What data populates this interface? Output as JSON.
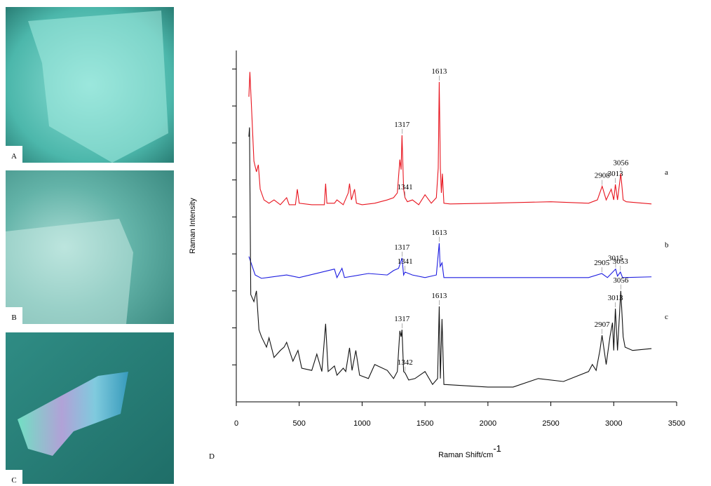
{
  "panels": [
    "A",
    "B",
    "C",
    "D"
  ],
  "chart_data": {
    "type": "line",
    "x_label": "Raman Shift/cm",
    "x_label_sup": "-1",
    "y_label": "Raman Intensity",
    "xlim": [
      0,
      3500
    ],
    "xticks": [
      0,
      500,
      1000,
      1500,
      2000,
      2500,
      3000,
      3500
    ],
    "ylim": [
      0,
      9.5
    ],
    "yticks": [
      1,
      2,
      3,
      4,
      5,
      6,
      7,
      8,
      9
    ],
    "ytick_labels": false,
    "series": [
      {
        "name": "a",
        "color": "#e8141e",
        "x": [
          100,
          108,
          120,
          140,
          160,
          175,
          190,
          220,
          260,
          300,
          350,
          400,
          420,
          470,
          485,
          500,
          600,
          700,
          710,
          720,
          780,
          800,
          850,
          890,
          900,
          915,
          940,
          955,
          1000,
          1100,
          1200,
          1250,
          1280,
          1300,
          1310,
          1317,
          1330,
          1341,
          1360,
          1400,
          1450,
          1500,
          1550,
          1590,
          1605,
          1613,
          1622,
          1630,
          1638,
          1650,
          1700,
          2000,
          2500,
          2800,
          2870,
          2908,
          2940,
          2980,
          3000,
          3013,
          3030,
          3056,
          3075,
          3100,
          3300
        ],
        "values": [
          8.25,
          8.92,
          8.03,
          6.51,
          6.22,
          6.41,
          5.75,
          5.46,
          5.37,
          5.46,
          5.33,
          5.52,
          5.33,
          5.33,
          5.75,
          5.37,
          5.33,
          5.33,
          5.9,
          5.37,
          5.37,
          5.46,
          5.33,
          5.65,
          5.9,
          5.46,
          5.75,
          5.37,
          5.33,
          5.37,
          5.46,
          5.52,
          5.65,
          6.55,
          6.28,
          7.21,
          5.75,
          5.52,
          5.41,
          5.46,
          5.33,
          5.6,
          5.37,
          5.52,
          6.32,
          8.65,
          6.32,
          5.65,
          6.17,
          5.37,
          5.35,
          5.37,
          5.41,
          5.37,
          5.46,
          5.83,
          5.46,
          5.75,
          5.46,
          5.88,
          5.46,
          6.17,
          5.46,
          5.41,
          5.35
        ],
        "peaks": [
          1317,
          1341,
          1613,
          2908,
          3013,
          3056
        ]
      },
      {
        "name": "b",
        "color": "#1c1ce0",
        "x": [
          100,
          150,
          200,
          400,
          500,
          780,
          800,
          840,
          860,
          1050,
          1200,
          1250,
          1290,
          1317,
          1330,
          1341,
          1400,
          1500,
          1590,
          1613,
          1620,
          1635,
          1650,
          2000,
          2800,
          2905,
          2950,
          3015,
          3030,
          3053,
          3070,
          3300
        ],
        "values": [
          3.93,
          3.43,
          3.34,
          3.43,
          3.36,
          3.59,
          3.36,
          3.61,
          3.36,
          3.47,
          3.43,
          3.55,
          3.61,
          3.89,
          3.43,
          3.51,
          3.43,
          3.36,
          3.43,
          4.29,
          3.66,
          3.76,
          3.36,
          3.36,
          3.36,
          3.47,
          3.36,
          3.59,
          3.4,
          3.51,
          3.36,
          3.38
        ],
        "peaks": [
          1317,
          1341,
          1613,
          2905,
          3015,
          3053
        ]
      },
      {
        "name": "c",
        "color": "#111111",
        "x": [
          100,
          105,
          115,
          140,
          160,
          180,
          200,
          240,
          260,
          300,
          350,
          380,
          400,
          450,
          490,
          520,
          600,
          640,
          680,
          710,
          730,
          780,
          800,
          850,
          870,
          900,
          920,
          950,
          980,
          1050,
          1100,
          1200,
          1250,
          1280,
          1300,
          1310,
          1317,
          1330,
          1342,
          1370,
          1420,
          1500,
          1560,
          1600,
          1613,
          1622,
          1635,
          1650,
          1800,
          2000,
          2200,
          2400,
          2600,
          2800,
          2830,
          2860,
          2890,
          2907,
          2940,
          2970,
          2990,
          3000,
          3013,
          3030,
          3056,
          3075,
          3090,
          3150,
          3300
        ],
        "values": [
          7.17,
          7.42,
          2.9,
          2.71,
          3.0,
          1.95,
          1.76,
          1.48,
          1.73,
          1.2,
          1.39,
          1.48,
          1.61,
          1.1,
          1.39,
          0.91,
          0.85,
          1.29,
          0.82,
          2.11,
          0.82,
          0.97,
          0.72,
          0.91,
          0.82,
          1.46,
          0.85,
          1.39,
          0.72,
          0.63,
          1.01,
          0.85,
          0.63,
          0.82,
          1.92,
          1.76,
          1.95,
          0.82,
          0.78,
          0.59,
          0.63,
          0.82,
          0.47,
          0.63,
          2.58,
          0.63,
          2.24,
          0.47,
          0.44,
          0.4,
          0.4,
          0.63,
          0.55,
          0.82,
          1.01,
          0.85,
          1.39,
          1.8,
          1.01,
          1.76,
          2.14,
          1.39,
          2.52,
          1.39,
          3.0,
          1.76,
          1.48,
          1.39,
          1.44
        ],
        "peaks": [
          1317,
          1342,
          1613,
          2907,
          3013,
          3056
        ]
      }
    ]
  }
}
